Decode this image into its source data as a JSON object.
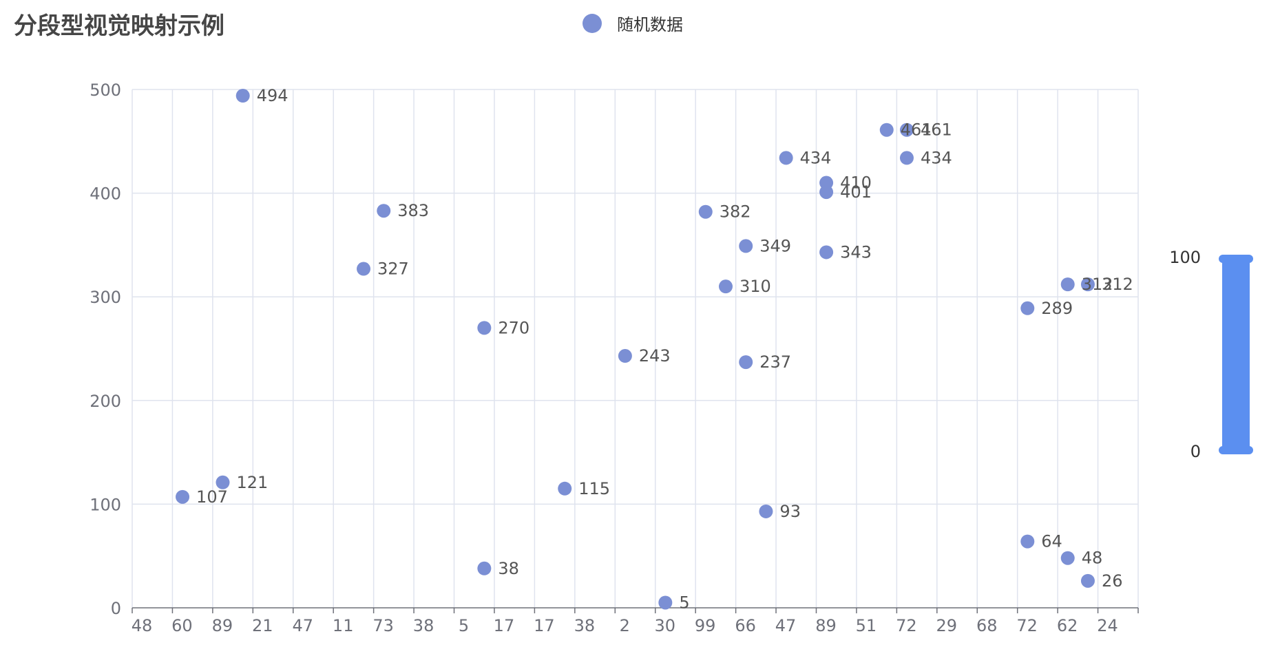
{
  "title": "分段型视觉映射示例",
  "legend": {
    "items": [
      "随机数据"
    ]
  },
  "colors": {
    "point": "#7b8fd4",
    "axis_text": "#6e7079",
    "grid": "#dfe3ee",
    "axis_line": "#6e7079",
    "visualmap": "#5b8ff0"
  },
  "chart_data": {
    "type": "scatter",
    "title": "分段型视觉映射示例",
    "xlabel": "",
    "ylabel": "",
    "ylim": [
      0,
      500
    ],
    "grid": true,
    "legend_position": "top-center",
    "categories": [
      "48",
      "60",
      "89",
      "21",
      "47",
      "11",
      "73",
      "38",
      "5",
      "17",
      "17",
      "38",
      "2",
      "30",
      "99",
      "66",
      "47",
      "89",
      "51",
      "72",
      "29",
      "68",
      "72",
      "62",
      "24"
    ],
    "series": [
      {
        "name": "随机数据",
        "points": [
          {
            "x": 1.25,
            "y": 107
          },
          {
            "x": 2.25,
            "y": 121
          },
          {
            "x": 2.75,
            "y": 494
          },
          {
            "x": 5.75,
            "y": 327
          },
          {
            "x": 6.25,
            "y": 383
          },
          {
            "x": 8.75,
            "y": 270
          },
          {
            "x": 8.75,
            "y": 38
          },
          {
            "x": 10.75,
            "y": 115
          },
          {
            "x": 12.25,
            "y": 243
          },
          {
            "x": 13.25,
            "y": 5
          },
          {
            "x": 14.25,
            "y": 382
          },
          {
            "x": 14.75,
            "y": 310
          },
          {
            "x": 15.25,
            "y": 349
          },
          {
            "x": 15.25,
            "y": 237
          },
          {
            "x": 15.75,
            "y": 93
          },
          {
            "x": 16.25,
            "y": 434
          },
          {
            "x": 17.25,
            "y": 410
          },
          {
            "x": 17.25,
            "y": 401
          },
          {
            "x": 17.25,
            "y": 343
          },
          {
            "x": 18.75,
            "y": 461
          },
          {
            "x": 19.25,
            "y": 461
          },
          {
            "x": 19.25,
            "y": 434
          },
          {
            "x": 22.25,
            "y": 289
          },
          {
            "x": 22.25,
            "y": 64
          },
          {
            "x": 23.25,
            "y": 312
          },
          {
            "x": 23.25,
            "y": 48
          },
          {
            "x": 23.75,
            "y": 312
          },
          {
            "x": 23.75,
            "y": 26
          }
        ]
      }
    ],
    "visual_map": {
      "type": "piecewise",
      "min": 0,
      "max": 100,
      "min_label": "0",
      "max_label": "100"
    }
  }
}
